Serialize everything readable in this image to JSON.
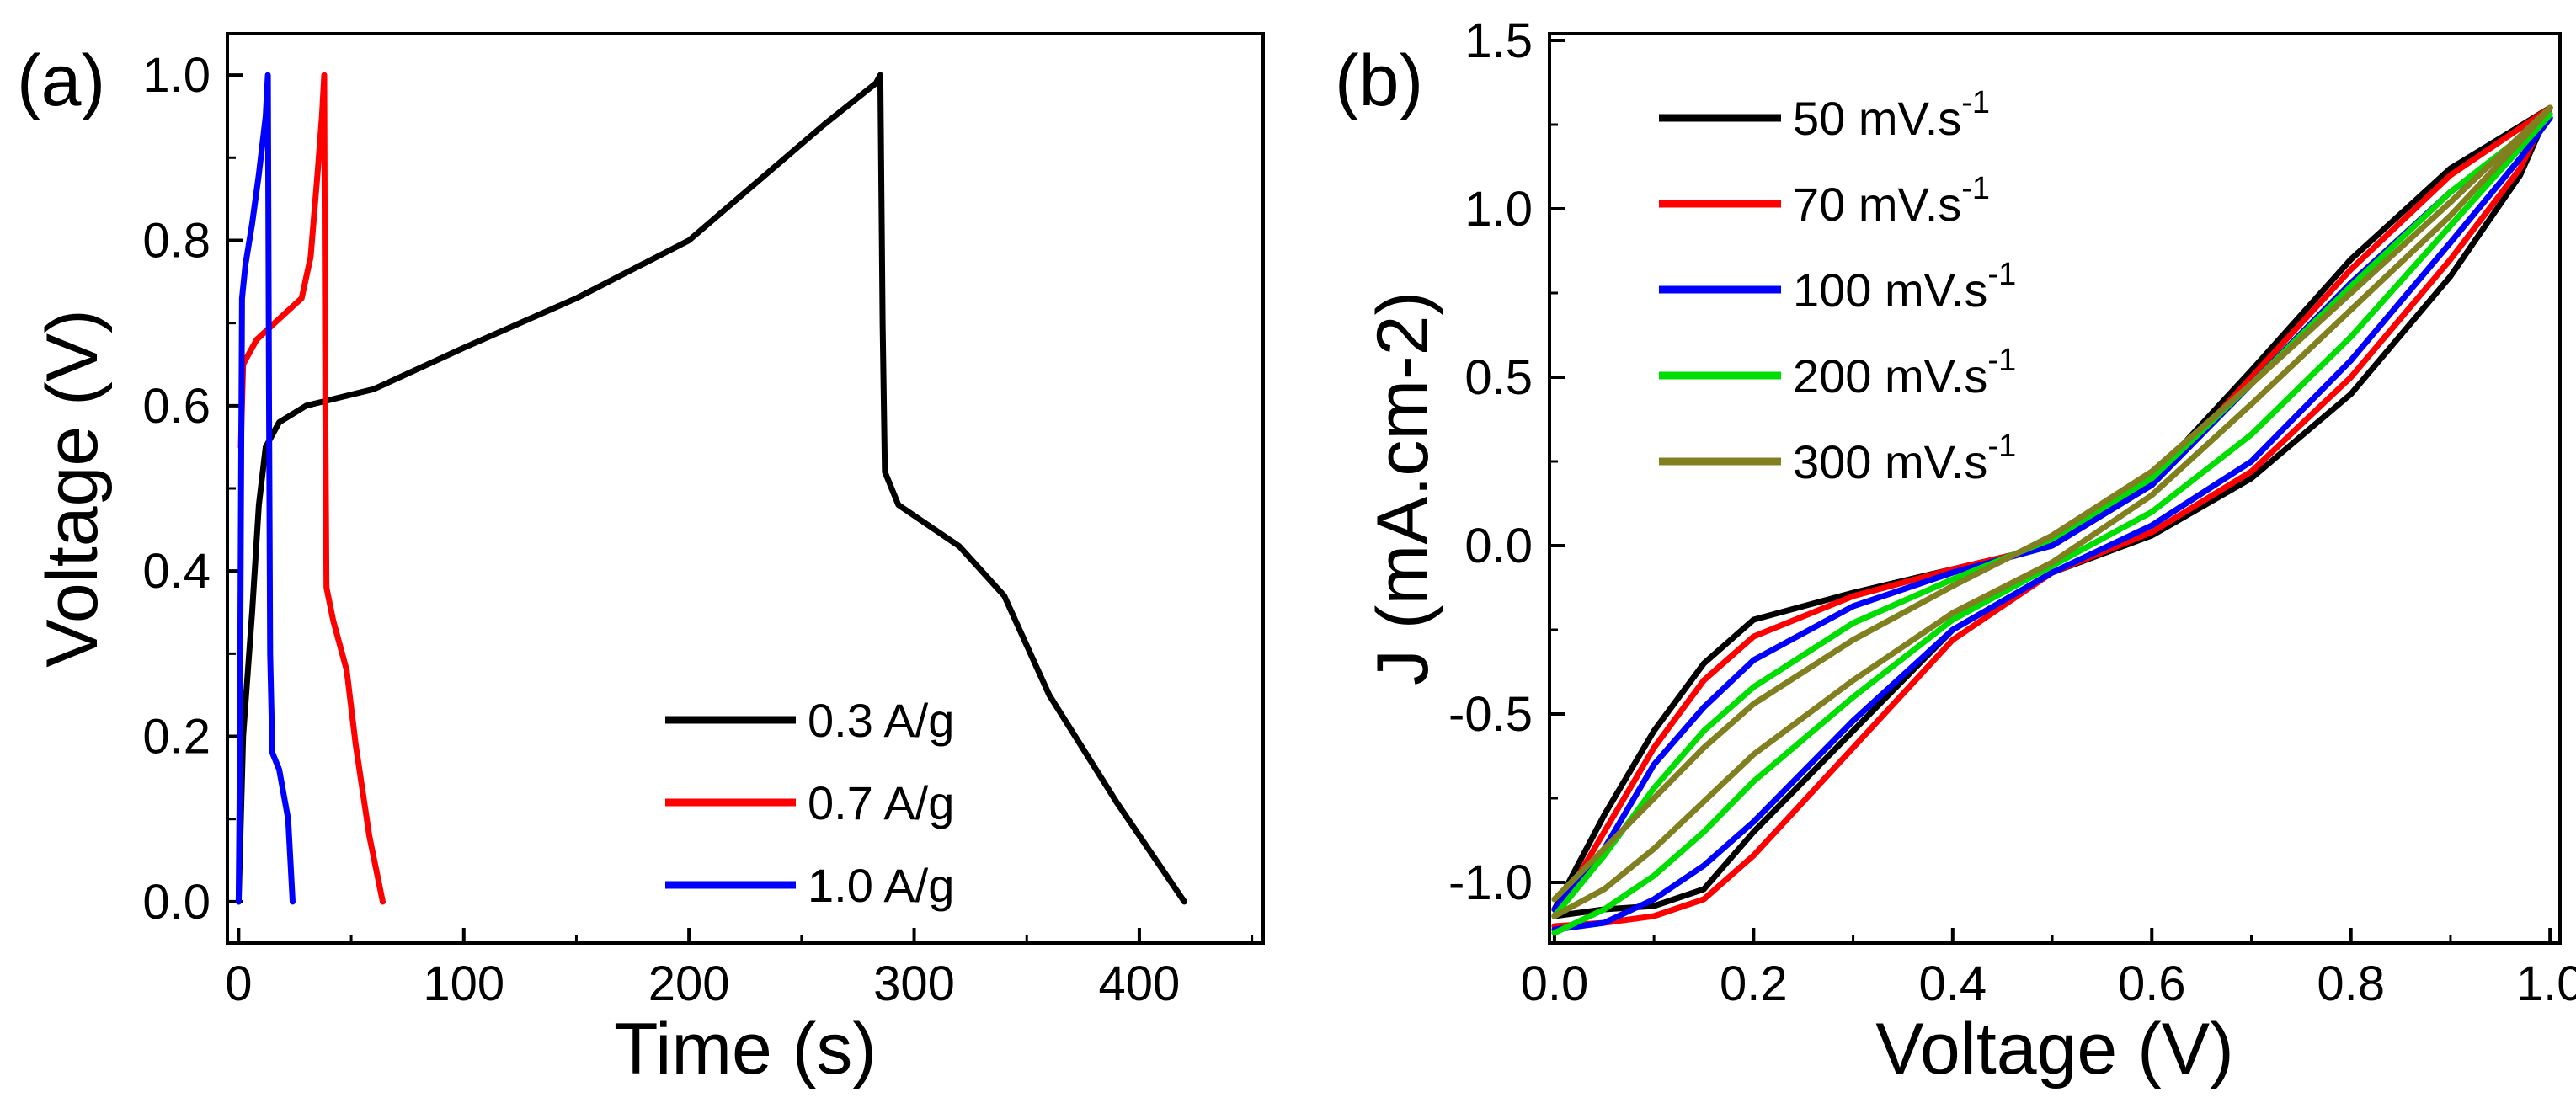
{
  "chart_data": [
    {
      "type": "line",
      "panel_label": "(a)",
      "xlabel": "Time (s)",
      "ylabel": "Voltage (V)",
      "xlim": [
        -5,
        455
      ],
      "ylim": [
        -0.05,
        1.05
      ],
      "x_ticks": [
        0,
        100,
        200,
        300,
        400
      ],
      "x_tick_labels": [
        "0",
        "100",
        "200",
        "300",
        "400"
      ],
      "y_ticks": [
        0,
        0.2,
        0.4,
        0.6,
        0.8,
        1.0
      ],
      "y_tick_labels": [
        "0.0",
        "0.2",
        "0.4",
        "0.6",
        "0.8",
        "1.0"
      ],
      "grid": false,
      "legend_position": "bottom-right",
      "series": [
        {
          "name": "0.3 A/g",
          "color": "#000000",
          "points": [
            [
              0,
              0
            ],
            [
              2,
              0.2
            ],
            [
              6,
              0.35
            ],
            [
              9,
              0.48
            ],
            [
              12,
              0.55
            ],
            [
              18,
              0.58
            ],
            [
              30,
              0.6
            ],
            [
              60,
              0.62
            ],
            [
              100,
              0.67
            ],
            [
              150,
              0.73
            ],
            [
              200,
              0.8
            ],
            [
              230,
              0.87
            ],
            [
              260,
              0.94
            ],
            [
              283,
              0.99
            ],
            [
              285,
              1.0
            ],
            [
              286,
              0.7
            ],
            [
              287,
              0.52
            ],
            [
              293,
              0.48
            ],
            [
              320,
              0.43
            ],
            [
              340,
              0.37
            ],
            [
              360,
              0.25
            ],
            [
              390,
              0.12
            ],
            [
              420,
              0.0
            ]
          ]
        },
        {
          "name": "0.7 A/g",
          "color": "#ff0000",
          "points": [
            [
              1,
              0.55
            ],
            [
              2,
              0.65
            ],
            [
              8,
              0.68
            ],
            [
              20,
              0.71
            ],
            [
              28,
              0.73
            ],
            [
              32,
              0.78
            ],
            [
              35,
              0.88
            ],
            [
              37,
              0.95
            ],
            [
              38,
              1.0
            ],
            [
              38.5,
              0.6
            ],
            [
              39,
              0.38
            ],
            [
              42,
              0.34
            ],
            [
              48,
              0.28
            ],
            [
              52,
              0.19
            ],
            [
              58,
              0.08
            ],
            [
              64,
              0.0
            ]
          ]
        },
        {
          "name": "1.0 A/g",
          "color": "#0000ff",
          "points": [
            [
              0,
              0
            ],
            [
              0.5,
              0.15
            ],
            [
              1,
              0.45
            ],
            [
              1.5,
              0.73
            ],
            [
              3,
              0.77
            ],
            [
              6,
              0.82
            ],
            [
              9,
              0.88
            ],
            [
              12,
              0.95
            ],
            [
              13,
              1.0
            ],
            [
              13.5,
              0.6
            ],
            [
              14,
              0.3
            ],
            [
              15,
              0.18
            ],
            [
              18,
              0.16
            ],
            [
              22,
              0.1
            ],
            [
              24,
              0.0
            ]
          ]
        }
      ]
    },
    {
      "type": "line",
      "panel_label": "(b)",
      "xlabel": "Voltage (V)",
      "ylabel": "J (mA.cm-2)",
      "xlim": [
        -0.005,
        1.01
      ],
      "ylim": [
        -1.18,
        1.52
      ],
      "x_ticks": [
        0,
        0.2,
        0.4,
        0.6,
        0.8,
        1.0
      ],
      "x_tick_labels": [
        "0.0",
        "0.2",
        "0.4",
        "0.6",
        "0.8",
        "1.0"
      ],
      "y_ticks": [
        -1.0,
        -0.5,
        0,
        0.5,
        1.0,
        1.5
      ],
      "y_tick_labels": [
        "-1.0",
        "-0.5",
        "0.0",
        "0.5",
        "1.0",
        "1.5"
      ],
      "grid": false,
      "legend_position": "top-left",
      "series": [
        {
          "name": "50 mV.s",
          "name_superscript": "-1",
          "color": "#000000",
          "points": [
            [
              0,
              -1.08
            ],
            [
              0.05,
              -0.8
            ],
            [
              0.1,
              -0.55
            ],
            [
              0.15,
              -0.35
            ],
            [
              0.2,
              -0.22
            ],
            [
              0.3,
              -0.14
            ],
            [
              0.4,
              -0.07
            ],
            [
              0.5,
              0.0
            ],
            [
              0.6,
              0.2
            ],
            [
              0.7,
              0.52
            ],
            [
              0.8,
              0.85
            ],
            [
              0.9,
              1.12
            ],
            [
              1.0,
              1.3
            ],
            [
              0.97,
              1.1
            ],
            [
              0.9,
              0.8
            ],
            [
              0.8,
              0.45
            ],
            [
              0.7,
              0.2
            ],
            [
              0.6,
              0.03
            ],
            [
              0.5,
              -0.08
            ],
            [
              0.4,
              -0.25
            ],
            [
              0.3,
              -0.55
            ],
            [
              0.2,
              -0.85
            ],
            [
              0.15,
              -1.02
            ],
            [
              0.1,
              -1.07
            ],
            [
              0.05,
              -1.08
            ],
            [
              0,
              -1.1
            ]
          ]
        },
        {
          "name": "70 mV.s",
          "name_superscript": "-1",
          "color": "#ff0000",
          "points": [
            [
              0,
              -1.1
            ],
            [
              0.05,
              -0.85
            ],
            [
              0.1,
              -0.6
            ],
            [
              0.15,
              -0.4
            ],
            [
              0.2,
              -0.27
            ],
            [
              0.3,
              -0.15
            ],
            [
              0.4,
              -0.07
            ],
            [
              0.5,
              0.0
            ],
            [
              0.6,
              0.18
            ],
            [
              0.7,
              0.5
            ],
            [
              0.8,
              0.82
            ],
            [
              0.9,
              1.1
            ],
            [
              1.0,
              1.3
            ],
            [
              0.97,
              1.12
            ],
            [
              0.9,
              0.85
            ],
            [
              0.8,
              0.5
            ],
            [
              0.7,
              0.22
            ],
            [
              0.6,
              0.04
            ],
            [
              0.5,
              -0.08
            ],
            [
              0.4,
              -0.28
            ],
            [
              0.3,
              -0.6
            ],
            [
              0.2,
              -0.92
            ],
            [
              0.15,
              -1.05
            ],
            [
              0.1,
              -1.1
            ],
            [
              0.05,
              -1.12
            ],
            [
              0,
              -1.13
            ]
          ]
        },
        {
          "name": "100 mV.s",
          "name_superscript": "-1",
          "color": "#0000ff",
          "points": [
            [
              0,
              -1.08
            ],
            [
              0.05,
              -0.9
            ],
            [
              0.1,
              -0.65
            ],
            [
              0.15,
              -0.48
            ],
            [
              0.2,
              -0.34
            ],
            [
              0.3,
              -0.18
            ],
            [
              0.4,
              -0.08
            ],
            [
              0.5,
              0.0
            ],
            [
              0.6,
              0.18
            ],
            [
              0.7,
              0.48
            ],
            [
              0.8,
              0.78
            ],
            [
              0.9,
              1.05
            ],
            [
              1.0,
              1.27
            ],
            [
              0.97,
              1.15
            ],
            [
              0.9,
              0.9
            ],
            [
              0.8,
              0.55
            ],
            [
              0.7,
              0.25
            ],
            [
              0.6,
              0.06
            ],
            [
              0.5,
              -0.08
            ],
            [
              0.4,
              -0.25
            ],
            [
              0.3,
              -0.52
            ],
            [
              0.2,
              -0.82
            ],
            [
              0.15,
              -0.95
            ],
            [
              0.1,
              -1.05
            ],
            [
              0.05,
              -1.12
            ],
            [
              0,
              -1.14
            ]
          ]
        },
        {
          "name": "200 mV.s",
          "name_superscript": "-1",
          "color": "#00dd00",
          "points": [
            [
              0,
              -1.1
            ],
            [
              0.05,
              -0.92
            ],
            [
              0.1,
              -0.72
            ],
            [
              0.15,
              -0.55
            ],
            [
              0.2,
              -0.42
            ],
            [
              0.3,
              -0.23
            ],
            [
              0.4,
              -0.1
            ],
            [
              0.5,
              0.02
            ],
            [
              0.6,
              0.2
            ],
            [
              0.7,
              0.48
            ],
            [
              0.8,
              0.77
            ],
            [
              0.9,
              1.05
            ],
            [
              1.0,
              1.28
            ],
            [
              0.97,
              1.18
            ],
            [
              0.9,
              0.95
            ],
            [
              0.8,
              0.62
            ],
            [
              0.7,
              0.33
            ],
            [
              0.6,
              0.1
            ],
            [
              0.5,
              -0.06
            ],
            [
              0.4,
              -0.22
            ],
            [
              0.3,
              -0.45
            ],
            [
              0.2,
              -0.7
            ],
            [
              0.15,
              -0.85
            ],
            [
              0.1,
              -0.98
            ],
            [
              0.05,
              -1.08
            ],
            [
              0,
              -1.15
            ]
          ]
        },
        {
          "name": "300 mV.s",
          "name_superscript": "-1",
          "color": "#808020",
          "points": [
            [
              0,
              -1.05
            ],
            [
              0.05,
              -0.9
            ],
            [
              0.1,
              -0.75
            ],
            [
              0.15,
              -0.6
            ],
            [
              0.2,
              -0.47
            ],
            [
              0.3,
              -0.28
            ],
            [
              0.4,
              -0.12
            ],
            [
              0.5,
              0.03
            ],
            [
              0.6,
              0.22
            ],
            [
              0.7,
              0.48
            ],
            [
              0.8,
              0.75
            ],
            [
              0.9,
              1.02
            ],
            [
              1.0,
              1.3
            ],
            [
              0.97,
              1.2
            ],
            [
              0.9,
              0.98
            ],
            [
              0.8,
              0.7
            ],
            [
              0.7,
              0.42
            ],
            [
              0.6,
              0.15
            ],
            [
              0.5,
              -0.05
            ],
            [
              0.4,
              -0.2
            ],
            [
              0.3,
              -0.4
            ],
            [
              0.2,
              -0.62
            ],
            [
              0.15,
              -0.76
            ],
            [
              0.1,
              -0.9
            ],
            [
              0.05,
              -1.02
            ],
            [
              0,
              -1.1
            ]
          ]
        }
      ]
    }
  ]
}
